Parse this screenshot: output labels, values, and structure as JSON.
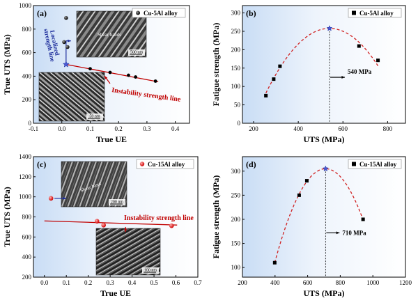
{
  "chart_data": [
    {
      "type": "scatter",
      "panel_label": "(a)",
      "xlabel": "True UE",
      "ylabel": "True UTS (MPa)",
      "xlim": [
        -0.1,
        0.45
      ],
      "ylim": [
        0,
        1000
      ],
      "xticks": [
        "-0.1",
        "0.0",
        "0.1",
        "0.2",
        "0.3",
        "0.4"
      ],
      "yticks": [
        "0",
        "200",
        "400",
        "600",
        "800",
        "1000"
      ],
      "legend": "Cu-5Al alloy",
      "legend_position": "top-right",
      "points": [
        {
          "x": 0.015,
          "y": 895
        },
        {
          "x": 0.008,
          "y": 690
        },
        {
          "x": 0.02,
          "y": 648
        },
        {
          "x": 0.1,
          "y": 463
        },
        {
          "x": 0.17,
          "y": 432
        },
        {
          "x": 0.235,
          "y": 408
        },
        {
          "x": 0.26,
          "y": 393
        },
        {
          "x": 0.33,
          "y": 358
        }
      ],
      "star": {
        "x": 0.015,
        "y": 500
      },
      "instability_line": [
        [
          0.015,
          500
        ],
        [
          0.33,
          358
        ]
      ],
      "annotations": [
        "Localized strength line",
        "Instability strength line",
        "Shear bands",
        "500 nm",
        "50 nm"
      ]
    },
    {
      "type": "scatter",
      "panel_label": "(b)",
      "xlabel": "UTS (MPa)",
      "ylabel": "Fatigue strength (MPa)",
      "xlim": [
        150,
        880
      ],
      "ylim": [
        0,
        320
      ],
      "xticks": [
        "200",
        "400",
        "600",
        "800"
      ],
      "yticks": [
        "0",
        "50",
        "100",
        "150",
        "200",
        "250",
        "300"
      ],
      "legend": "Cu-5Al alloy",
      "legend_position": "top-right",
      "points": [
        {
          "x": 255,
          "y": 75
        },
        {
          "x": 290,
          "y": 120
        },
        {
          "x": 318,
          "y": 155
        },
        {
          "x": 672,
          "y": 210
        },
        {
          "x": 757,
          "y": 171
        }
      ],
      "peak": {
        "x": 540,
        "y": 258
      },
      "annotation": "540 MPa"
    },
    {
      "type": "scatter",
      "panel_label": "(c)",
      "xlabel": "True UE",
      "ylabel": "True UTS (MPa)",
      "xlim": [
        -0.05,
        0.7
      ],
      "ylim": [
        200,
        1400
      ],
      "xticks": [
        "0.0",
        "0.1",
        "0.2",
        "0.3",
        "0.4",
        "0.5",
        "0.6",
        "0.7"
      ],
      "yticks": [
        "200",
        "400",
        "600",
        "800",
        "1000",
        "1200",
        "1400"
      ],
      "legend": "Cu-15Al alloy",
      "legend_position": "top-right",
      "points": [
        {
          "x": 0.03,
          "y": 985
        },
        {
          "x": 0.24,
          "y": 757
        },
        {
          "x": 0.27,
          "y": 718
        },
        {
          "x": 0.58,
          "y": 712
        }
      ],
      "instability_line": [
        [
          0.0,
          760
        ],
        [
          0.58,
          712
        ]
      ],
      "annotations": [
        "Instability strength line",
        "Shear band",
        "200 nm",
        "100 nm"
      ]
    },
    {
      "type": "scatter",
      "panel_label": "(d)",
      "xlabel": "UTS (MPa)",
      "ylabel": "Fatigue strength (MPa)",
      "xlim": [
        200,
        1200
      ],
      "ylim": [
        80,
        330
      ],
      "xticks": [
        "200",
        "400",
        "600",
        "800",
        "1000",
        "1200"
      ],
      "yticks": [
        "100",
        "150",
        "200",
        "250",
        "300"
      ],
      "legend": "Cu-15Al alloy",
      "legend_position": "top-right",
      "points": [
        {
          "x": 398,
          "y": 110
        },
        {
          "x": 548,
          "y": 250
        },
        {
          "x": 595,
          "y": 280
        },
        {
          "x": 940,
          "y": 200
        }
      ],
      "peak": {
        "x": 710,
        "y": 305
      },
      "annotation": "710 MPa"
    }
  ]
}
